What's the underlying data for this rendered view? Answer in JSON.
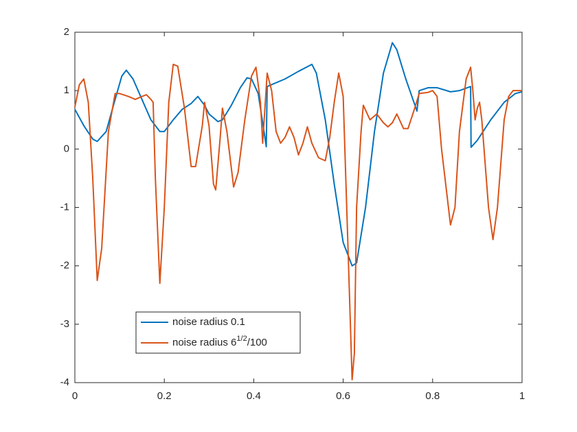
{
  "chart_data": {
    "type": "line",
    "xlim": [
      0,
      1
    ],
    "ylim": [
      -4,
      2
    ],
    "xticks": [
      0,
      0.2,
      0.4,
      0.6,
      0.8,
      1
    ],
    "yticks": [
      -4,
      -3,
      -2,
      -1,
      0,
      1,
      2
    ],
    "grid": false,
    "legend_location": "southwest",
    "series": [
      {
        "name": "noise radius 0.1",
        "color": "#0072bd",
        "x": [
          0,
          0.02,
          0.04,
          0.05,
          0.07,
          0.09,
          0.105,
          0.115,
          0.13,
          0.15,
          0.17,
          0.19,
          0.2,
          0.22,
          0.24,
          0.26,
          0.275,
          0.29,
          0.3,
          0.32,
          0.33,
          0.35,
          0.37,
          0.385,
          0.395,
          0.41,
          0.425,
          0.428,
          0.43,
          0.47,
          0.5,
          0.53,
          0.54,
          0.56,
          0.58,
          0.6,
          0.62,
          0.63,
          0.65,
          0.67,
          0.69,
          0.71,
          0.72,
          0.74,
          0.765,
          0.77,
          0.79,
          0.81,
          0.84,
          0.86,
          0.885,
          0.886,
          0.9,
          0.93,
          0.96,
          0.985,
          1
        ],
        "values": [
          0.68,
          0.4,
          0.17,
          0.13,
          0.3,
          0.85,
          1.25,
          1.35,
          1.2,
          0.85,
          0.5,
          0.3,
          0.3,
          0.5,
          0.68,
          0.78,
          0.9,
          0.75,
          0.6,
          0.47,
          0.5,
          0.75,
          1.05,
          1.22,
          1.2,
          0.95,
          0.2,
          0.04,
          1.07,
          1.2,
          1.33,
          1.45,
          1.3,
          0.5,
          -0.6,
          -1.6,
          -2.0,
          -1.95,
          -1.0,
          0.3,
          1.3,
          1.82,
          1.7,
          1.2,
          0.65,
          1.0,
          1.05,
          1.05,
          0.98,
          1.0,
          1.07,
          0.03,
          0.15,
          0.5,
          0.8,
          0.95,
          0.98
        ]
      },
      {
        "name": "noise radius 6^{1/2}/100",
        "color": "#d95319",
        "x": [
          0,
          0.01,
          0.02,
          0.03,
          0.04,
          0.05,
          0.06,
          0.075,
          0.09,
          0.1,
          0.12,
          0.135,
          0.15,
          0.16,
          0.17,
          0.175,
          0.18,
          0.19,
          0.2,
          0.21,
          0.22,
          0.23,
          0.245,
          0.26,
          0.27,
          0.285,
          0.29,
          0.3,
          0.31,
          0.315,
          0.325,
          0.33,
          0.34,
          0.355,
          0.365,
          0.38,
          0.395,
          0.405,
          0.415,
          0.42,
          0.43,
          0.44,
          0.45,
          0.46,
          0.47,
          0.48,
          0.49,
          0.5,
          0.51,
          0.52,
          0.53,
          0.545,
          0.56,
          0.57,
          0.58,
          0.59,
          0.6,
          0.61,
          0.62,
          0.625,
          0.63,
          0.64,
          0.645,
          0.66,
          0.675,
          0.69,
          0.7,
          0.71,
          0.72,
          0.735,
          0.745,
          0.76,
          0.77,
          0.79,
          0.8,
          0.81,
          0.82,
          0.84,
          0.85,
          0.86,
          0.875,
          0.885,
          0.89,
          0.895,
          0.9,
          0.905,
          0.91,
          0.925,
          0.935,
          0.945,
          0.96,
          0.97,
          0.98,
          1
        ],
        "values": [
          0.72,
          1.1,
          1.2,
          0.8,
          -0.5,
          -2.25,
          -1.7,
          0.3,
          0.95,
          0.95,
          0.9,
          0.85,
          0.9,
          0.93,
          0.85,
          0.8,
          -0.5,
          -2.3,
          -1.0,
          0.8,
          1.45,
          1.42,
          0.7,
          -0.3,
          -0.3,
          0.4,
          0.8,
          0.4,
          -0.6,
          -0.7,
          0.2,
          0.7,
          0.3,
          -0.65,
          -0.4,
          0.5,
          1.25,
          1.4,
          0.8,
          0.1,
          1.3,
          1.0,
          0.3,
          0.1,
          0.2,
          0.38,
          0.2,
          -0.1,
          0.1,
          0.38,
          0.1,
          -0.15,
          -0.2,
          0.2,
          0.8,
          1.3,
          0.9,
          -1.5,
          -3.95,
          -3.5,
          -1.0,
          0.3,
          0.75,
          0.5,
          0.6,
          0.45,
          0.38,
          0.45,
          0.6,
          0.35,
          0.35,
          0.7,
          0.95,
          0.97,
          1.0,
          0.9,
          0.0,
          -1.3,
          -1.0,
          0.3,
          1.2,
          1.4,
          1.0,
          0.5,
          0.7,
          0.8,
          0.5,
          -1.0,
          -1.55,
          -1.0,
          0.5,
          0.9,
          1.0,
          1.0
        ]
      }
    ]
  }
}
